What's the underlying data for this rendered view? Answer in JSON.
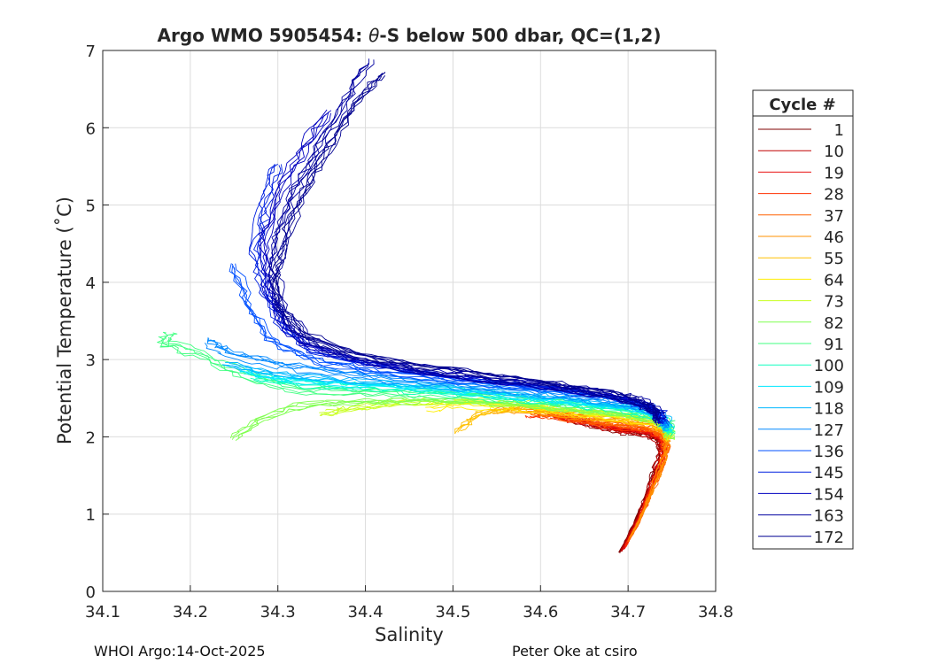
{
  "chart_data": {
    "type": "line",
    "title_prefix": "Argo WMO 5905454: ",
    "title_theta": "θ",
    "title_suffix": "-S below 500 dbar,  QC=(1,2)",
    "xlabel": "Salinity",
    "ylabel": "Potential Temperature (˚C)",
    "xlim": [
      34.1,
      34.8
    ],
    "ylim": [
      0,
      7
    ],
    "xticks": [
      "34.1",
      "34.2",
      "34.3",
      "34.4",
      "34.5",
      "34.6",
      "34.7",
      "34.8"
    ],
    "yticks": [
      "0",
      "1",
      "2",
      "3",
      "4",
      "5",
      "6",
      "7"
    ],
    "grid": true,
    "legend": {
      "title": "Cycle #",
      "placement": "right, outside",
      "entries": [
        {
          "label": "1",
          "color": "#800000"
        },
        {
          "label": "10",
          "color": "#c00000"
        },
        {
          "label": "19",
          "color": "#e81010"
        },
        {
          "label": "28",
          "color": "#ff3000"
        },
        {
          "label": "37",
          "color": "#ff6000"
        },
        {
          "label": "46",
          "color": "#ff9000"
        },
        {
          "label": "55",
          "color": "#ffc000"
        },
        {
          "label": "64",
          "color": "#ffee00"
        },
        {
          "label": "73",
          "color": "#c8ff20"
        },
        {
          "label": "82",
          "color": "#80ff50"
        },
        {
          "label": "91",
          "color": "#40ff80"
        },
        {
          "label": "100",
          "color": "#10ffc0"
        },
        {
          "label": "109",
          "color": "#00e8ff"
        },
        {
          "label": "118",
          "color": "#00b8ff"
        },
        {
          "label": "127",
          "color": "#0088ff"
        },
        {
          "label": "136",
          "color": "#0050ff"
        },
        {
          "label": "145",
          "color": "#0020e0"
        },
        {
          "label": "154",
          "color": "#0000c0"
        },
        {
          "label": "163",
          "color": "#0000a0"
        },
        {
          "label": "172",
          "color": "#000090"
        }
      ]
    },
    "series_note": "One θ-S profile per cycle, colored by cycle number",
    "series": [
      {
        "name": "1",
        "color": "#800000",
        "s": [
          34.69,
          34.7,
          34.712,
          34.722,
          34.73,
          34.737,
          34.735,
          34.726,
          34.705,
          34.69,
          34.66,
          34.635
        ],
        "t": [
          0.5,
          0.72,
          1.0,
          1.3,
          1.55,
          1.8,
          1.92,
          2.0,
          2.05,
          2.08,
          2.15,
          2.22
        ]
      },
      {
        "name": "10",
        "color": "#c00000",
        "s": [
          34.692,
          34.702,
          34.714,
          34.724,
          34.733,
          34.739,
          34.736,
          34.726,
          34.705,
          34.686,
          34.655,
          34.625
        ],
        "t": [
          0.52,
          0.75,
          1.02,
          1.32,
          1.58,
          1.82,
          1.95,
          2.03,
          2.07,
          2.09,
          2.17,
          2.24
        ]
      },
      {
        "name": "19",
        "color": "#e81010",
        "s": [
          34.695,
          34.705,
          34.716,
          34.726,
          34.735,
          34.741,
          34.738,
          34.727,
          34.703,
          34.68,
          34.645,
          34.61
        ],
        "t": [
          0.55,
          0.78,
          1.05,
          1.35,
          1.6,
          1.84,
          1.97,
          2.05,
          2.09,
          2.12,
          2.2,
          2.27
        ]
      },
      {
        "name": "28",
        "color": "#ff3000",
        "s": [
          34.697,
          34.707,
          34.718,
          34.728,
          34.737,
          34.742,
          34.739,
          34.728,
          34.7,
          34.672,
          34.635,
          34.6,
          34.585
        ],
        "t": [
          0.58,
          0.8,
          1.08,
          1.38,
          1.63,
          1.86,
          2.0,
          2.08,
          2.12,
          2.16,
          2.24,
          2.3,
          2.28
        ]
      },
      {
        "name": "37",
        "color": "#ff6000",
        "s": [
          34.7,
          34.71,
          34.72,
          34.73,
          34.738,
          34.743,
          34.74,
          34.728,
          34.698,
          34.665,
          34.625,
          34.59
        ],
        "t": [
          0.65,
          0.85,
          1.12,
          1.4,
          1.65,
          1.88,
          2.02,
          2.1,
          2.15,
          2.2,
          2.27,
          2.33
        ]
      },
      {
        "name": "46",
        "color": "#ff9000",
        "s": [
          34.702,
          34.712,
          34.722,
          34.732,
          34.74,
          34.744,
          34.741,
          34.728,
          34.695,
          34.66,
          34.615,
          34.58,
          34.545
        ],
        "t": [
          0.7,
          0.9,
          1.15,
          1.43,
          1.68,
          1.9,
          2.05,
          2.13,
          2.18,
          2.23,
          2.3,
          2.34,
          2.32
        ]
      },
      {
        "name": "55",
        "color": "#ffc000",
        "s": [
          34.745,
          34.742,
          34.728,
          34.695,
          34.655,
          34.61,
          34.57,
          34.53,
          34.505
        ],
        "t": [
          1.95,
          2.08,
          2.16,
          2.21,
          2.26,
          2.33,
          2.35,
          2.3,
          2.05
        ]
      },
      {
        "name": "64",
        "color": "#ffee00",
        "s": [
          34.746,
          34.743,
          34.729,
          34.695,
          34.65,
          34.6,
          34.555,
          34.51,
          34.47
        ],
        "t": [
          1.96,
          2.1,
          2.19,
          2.25,
          2.3,
          2.36,
          2.4,
          2.42,
          2.38
        ]
      },
      {
        "name": "73",
        "color": "#c8ff20",
        "s": [
          34.747,
          34.744,
          34.73,
          34.695,
          34.648,
          34.595,
          34.54,
          34.48,
          34.42,
          34.38,
          34.35
        ],
        "t": [
          1.98,
          2.12,
          2.21,
          2.28,
          2.34,
          2.4,
          2.44,
          2.46,
          2.42,
          2.35,
          2.3
        ]
      },
      {
        "name": "82",
        "color": "#80ff50",
        "s": [
          34.748,
          34.745,
          34.731,
          34.696,
          34.645,
          34.59,
          34.53,
          34.465,
          34.4,
          34.33,
          34.28,
          34.25
        ],
        "t": [
          2.0,
          2.14,
          2.23,
          2.3,
          2.37,
          2.43,
          2.48,
          2.5,
          2.48,
          2.45,
          2.25,
          2.0
        ]
      },
      {
        "name": "91",
        "color": "#40ff80",
        "s": [
          34.748,
          34.746,
          34.732,
          34.697,
          34.642,
          34.585,
          34.52,
          34.455,
          34.39,
          34.32,
          34.26,
          34.21,
          34.17,
          34.175
        ],
        "t": [
          2.02,
          2.16,
          2.25,
          2.33,
          2.4,
          2.46,
          2.52,
          2.55,
          2.56,
          2.6,
          2.78,
          3.05,
          3.2,
          3.3
        ]
      },
      {
        "name": "100",
        "color": "#10ffc0",
        "s": [
          34.747,
          34.745,
          34.731,
          34.696,
          34.64,
          34.58,
          34.515,
          34.445,
          34.38,
          34.32,
          34.27
        ],
        "t": [
          2.05,
          2.18,
          2.27,
          2.36,
          2.43,
          2.5,
          2.57,
          2.62,
          2.65,
          2.7,
          2.78
        ]
      },
      {
        "name": "109",
        "color": "#00e8ff",
        "s": [
          34.746,
          34.744,
          34.73,
          34.695,
          34.638,
          34.575,
          34.505,
          34.435,
          34.37,
          34.31,
          34.26
        ],
        "t": [
          2.08,
          2.21,
          2.3,
          2.39,
          2.46,
          2.53,
          2.6,
          2.66,
          2.7,
          2.75,
          2.85
        ]
      },
      {
        "name": "118",
        "color": "#00b8ff",
        "s": [
          34.745,
          34.742,
          34.728,
          34.692,
          34.635,
          34.57,
          34.5,
          34.43,
          34.36,
          34.3,
          34.24
        ],
        "t": [
          2.1,
          2.23,
          2.33,
          2.42,
          2.5,
          2.57,
          2.64,
          2.7,
          2.75,
          2.82,
          2.95
        ]
      },
      {
        "name": "127",
        "color": "#0088ff",
        "s": [
          34.744,
          34.74,
          34.726,
          34.69,
          34.632,
          34.565,
          34.495,
          34.42,
          34.35,
          34.29,
          34.24,
          34.22
        ],
        "t": [
          2.12,
          2.25,
          2.35,
          2.45,
          2.53,
          2.6,
          2.68,
          2.76,
          2.85,
          2.95,
          3.1,
          3.25
        ]
      },
      {
        "name": "136",
        "color": "#0050ff",
        "s": [
          34.742,
          34.738,
          34.724,
          34.688,
          34.63,
          34.56,
          34.49,
          34.415,
          34.345,
          34.295,
          34.27,
          34.25
        ],
        "t": [
          2.14,
          2.27,
          2.37,
          2.47,
          2.56,
          2.64,
          2.72,
          2.82,
          2.95,
          3.2,
          3.6,
          4.2
        ]
      },
      {
        "name": "145",
        "color": "#0020e0",
        "s": [
          34.74,
          34.736,
          34.722,
          34.686,
          34.628,
          34.555,
          34.48,
          34.405,
          34.34,
          34.305,
          34.285,
          34.275,
          34.285,
          34.3
        ],
        "t": [
          2.16,
          2.29,
          2.39,
          2.49,
          2.59,
          2.68,
          2.78,
          2.9,
          3.08,
          3.4,
          3.85,
          4.4,
          5.0,
          5.5
        ]
      },
      {
        "name": "154",
        "color": "#0000c0",
        "s": [
          34.738,
          34.734,
          34.72,
          34.684,
          34.625,
          34.55,
          34.47,
          34.395,
          34.335,
          34.305,
          34.29,
          34.285,
          34.3,
          34.33,
          34.36
        ],
        "t": [
          2.18,
          2.31,
          2.41,
          2.52,
          2.62,
          2.72,
          2.83,
          2.98,
          3.18,
          3.5,
          3.95,
          4.5,
          5.1,
          5.7,
          6.2
        ]
      },
      {
        "name": "163",
        "color": "#0000a0",
        "s": [
          34.736,
          34.732,
          34.718,
          34.682,
          34.622,
          34.545,
          34.46,
          34.385,
          34.33,
          34.305,
          34.295,
          34.3,
          34.32,
          34.35,
          34.38,
          34.405
        ],
        "t": [
          2.2,
          2.33,
          2.43,
          2.54,
          2.65,
          2.76,
          2.88,
          3.05,
          3.28,
          3.6,
          4.05,
          4.6,
          5.2,
          5.8,
          6.4,
          6.85
        ]
      },
      {
        "name": "172",
        "color": "#000090",
        "s": [
          34.734,
          34.73,
          34.716,
          34.68,
          34.62,
          34.54,
          34.455,
          34.38,
          34.325,
          34.3,
          34.298,
          34.31,
          34.335,
          34.365,
          34.395,
          34.42
        ],
        "t": [
          2.22,
          2.35,
          2.45,
          2.56,
          2.68,
          2.8,
          2.93,
          3.1,
          3.35,
          3.7,
          4.15,
          4.7,
          5.3,
          5.9,
          6.45,
          6.7
        ]
      }
    ]
  },
  "footer": {
    "left": "WHOI Argo:14-Oct-2025",
    "right": "Peter Oke at csiro"
  }
}
